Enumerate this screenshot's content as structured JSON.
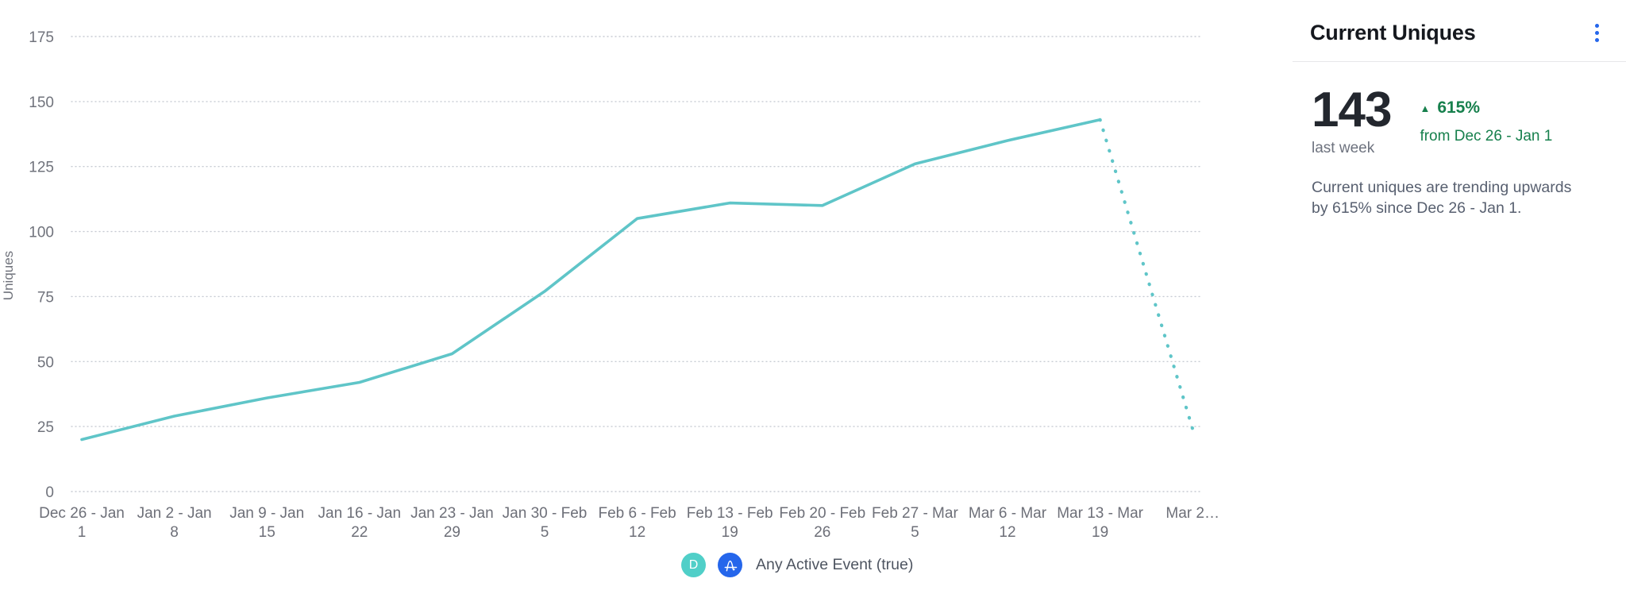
{
  "panel": {
    "title": "Current Uniques",
    "stat_value": "143",
    "stat_period": "last week",
    "trend_arrow": "▲",
    "trend_percent": "615%",
    "trend_from": "from Dec 26 - Jan 1",
    "description": "Current uniques are trending upwards by 615% since Dec 26 - Jan 1."
  },
  "legend": {
    "dataset_badge": "D",
    "event_label": "Any Active Event (true)"
  },
  "colors": {
    "line_teal": "#5fc5c8",
    "badge_teal": "#50cfc8",
    "accent_blue": "#2566eb",
    "trend_green": "#17804d",
    "gridline": "#c8ccd4"
  },
  "chart_data": {
    "type": "line",
    "title": "Current Uniques",
    "xlabel": "",
    "ylabel": "Uniques",
    "ylim": [
      0,
      175
    ],
    "yticks": [
      0,
      25,
      50,
      75,
      100,
      125,
      150,
      175
    ],
    "grid": "horizontal-dotted",
    "legend_position": "bottom",
    "categories": [
      "Dec 26 - Jan 1",
      "Jan 2 - Jan 8",
      "Jan 9 - Jan 15",
      "Jan 16 - Jan 22",
      "Jan 23 - Jan 29",
      "Jan 30 - Feb 5",
      "Feb 6 - Feb 12",
      "Feb 13 - Feb 19",
      "Feb 20 - Feb 26",
      "Feb 27 - Mar 5",
      "Mar 6 - Mar 12",
      "Mar 13 - Mar 19",
      "Mar 2…"
    ],
    "series": [
      {
        "name": "Any Active Event (true)",
        "values": [
          20,
          29,
          36,
          42,
          53,
          77,
          105,
          111,
          110,
          126,
          135,
          143,
          24
        ],
        "dashed_from_index": 11,
        "dashed_note": "final partial-week segment rendered as dotted line"
      }
    ]
  }
}
